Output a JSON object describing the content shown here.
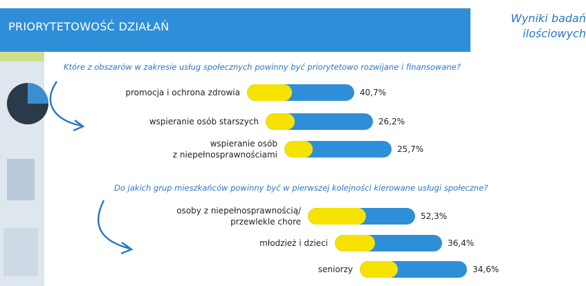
{
  "header": {
    "title": "PRIORYTETOWOŚĆ DZIAŁAŃ",
    "subtitle": "Wyniki badań\nilościowych"
  },
  "chart_data": [
    {
      "type": "bar",
      "title": "Które z obszarów w zakresie usług społecznych powinny być priorytetowo rozwijane i finansowane?",
      "categories": [
        "promocja i ochrona zdrowia",
        "wspieranie osób starszych",
        "wspieranie osób\nz niepełnosprawnościami"
      ],
      "values": [
        40.7,
        26.2,
        25.7
      ],
      "value_labels": [
        "40,7%",
        "26,2%",
        "25,7%"
      ],
      "color": "#f5e200"
    },
    {
      "type": "bar",
      "title": "Do jakich grup mieszkańców powinny być w pierwszej kolejności kierowane usługi społeczne?",
      "categories": [
        "osoby z niepełnosprawnością/\nprzewlekle chore",
        "młodzież i dzieci",
        "seniorzy"
      ],
      "values": [
        52.3,
        36.4,
        34.6
      ],
      "value_labels": [
        "52,3%",
        "36,4%",
        "34,6%"
      ],
      "color": "#f5e200"
    }
  ]
}
